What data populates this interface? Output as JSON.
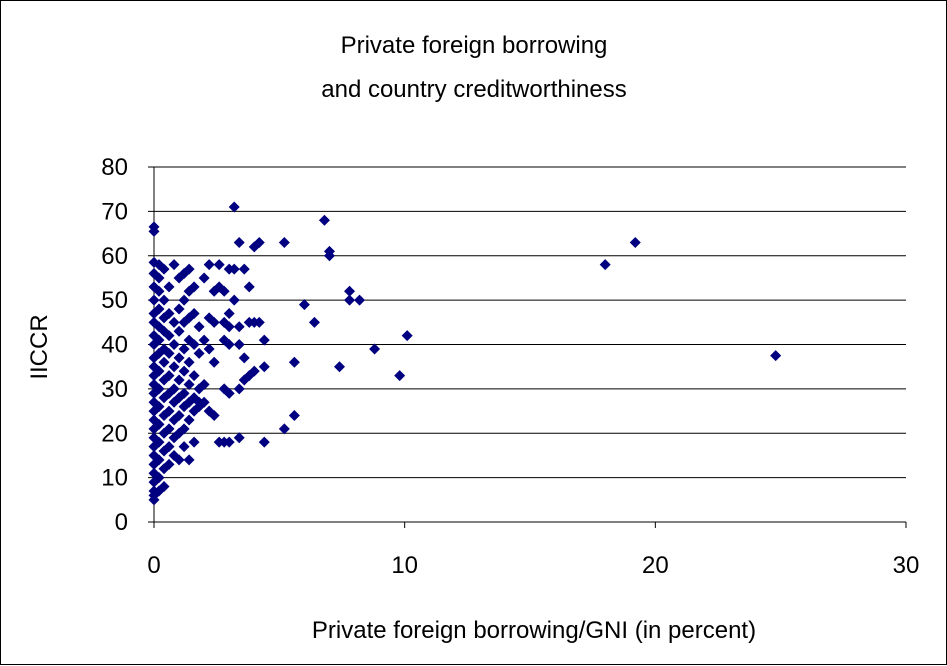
{
  "chart_data": {
    "type": "scatter",
    "title_lines": [
      "Private foreign borrowing",
      "and country creditworthiness"
    ],
    "xlabel": "Private foreign borrowing/GNI (in percent)",
    "ylabel": "IICCR",
    "xlim": [
      0,
      30
    ],
    "ylim": [
      0,
      80
    ],
    "x_ticks": [
      0,
      10,
      20,
      30
    ],
    "y_ticks": [
      0,
      10,
      20,
      30,
      40,
      50,
      60,
      70,
      80
    ],
    "grid": "horizontal",
    "marker": "diamond",
    "marker_color": "#000080",
    "series": [
      {
        "points": [
          [
            0,
            66.5
          ],
          [
            0,
            65.5
          ],
          [
            0,
            58.5
          ],
          [
            0,
            56
          ],
          [
            0,
            53
          ],
          [
            0,
            50
          ],
          [
            0,
            47
          ],
          [
            0,
            45
          ],
          [
            0,
            42
          ],
          [
            0,
            40
          ],
          [
            0,
            37
          ],
          [
            0,
            35
          ],
          [
            0,
            33
          ],
          [
            0,
            31
          ],
          [
            0,
            29
          ],
          [
            0,
            27
          ],
          [
            0,
            25
          ],
          [
            0,
            23
          ],
          [
            0,
            21
          ],
          [
            0,
            19
          ],
          [
            0,
            17
          ],
          [
            0,
            15
          ],
          [
            0,
            13
          ],
          [
            0,
            11
          ],
          [
            0,
            9
          ],
          [
            0,
            7
          ],
          [
            0,
            6
          ],
          [
            0,
            5
          ],
          [
            0.2,
            58
          ],
          [
            0.2,
            55
          ],
          [
            0.2,
            52
          ],
          [
            0.2,
            48
          ],
          [
            0.2,
            44
          ],
          [
            0.2,
            41
          ],
          [
            0.2,
            38
          ],
          [
            0.2,
            34
          ],
          [
            0.2,
            30
          ],
          [
            0.2,
            26
          ],
          [
            0.2,
            22
          ],
          [
            0.2,
            18
          ],
          [
            0.2,
            14
          ],
          [
            0.2,
            10
          ],
          [
            0.2,
            7
          ],
          [
            0.4,
            57
          ],
          [
            0.4,
            50
          ],
          [
            0.4,
            46
          ],
          [
            0.4,
            43
          ],
          [
            0.4,
            39
          ],
          [
            0.4,
            36
          ],
          [
            0.4,
            32
          ],
          [
            0.4,
            28
          ],
          [
            0.4,
            24
          ],
          [
            0.4,
            20
          ],
          [
            0.4,
            16
          ],
          [
            0.4,
            12
          ],
          [
            0.4,
            8
          ],
          [
            0.6,
            53
          ],
          [
            0.6,
            47
          ],
          [
            0.6,
            42
          ],
          [
            0.6,
            38
          ],
          [
            0.6,
            33
          ],
          [
            0.6,
            29
          ],
          [
            0.6,
            25
          ],
          [
            0.6,
            21
          ],
          [
            0.6,
            17
          ],
          [
            0.6,
            13
          ],
          [
            0.8,
            58
          ],
          [
            0.8,
            45
          ],
          [
            0.8,
            40
          ],
          [
            0.8,
            35
          ],
          [
            0.8,
            30
          ],
          [
            0.8,
            27
          ],
          [
            0.8,
            23
          ],
          [
            0.8,
            19
          ],
          [
            0.8,
            15
          ],
          [
            1.0,
            55
          ],
          [
            1.0,
            48
          ],
          [
            1.0,
            43
          ],
          [
            1.0,
            37
          ],
          [
            1.0,
            32
          ],
          [
            1.0,
            28
          ],
          [
            1.0,
            24
          ],
          [
            1.0,
            20
          ],
          [
            1.0,
            14
          ],
          [
            1.2,
            56
          ],
          [
            1.2,
            50
          ],
          [
            1.2,
            45
          ],
          [
            1.2,
            39
          ],
          [
            1.2,
            34
          ],
          [
            1.2,
            29
          ],
          [
            1.2,
            26
          ],
          [
            1.2,
            21
          ],
          [
            1.2,
            17
          ],
          [
            1.4,
            57
          ],
          [
            1.4,
            52
          ],
          [
            1.4,
            46
          ],
          [
            1.4,
            41
          ],
          [
            1.4,
            36
          ],
          [
            1.4,
            31
          ],
          [
            1.4,
            27
          ],
          [
            1.4,
            23
          ],
          [
            1.4,
            14
          ],
          [
            1.6,
            53
          ],
          [
            1.6,
            47
          ],
          [
            1.6,
            40
          ],
          [
            1.6,
            33
          ],
          [
            1.6,
            28
          ],
          [
            1.6,
            25
          ],
          [
            1.6,
            18
          ],
          [
            1.8,
            44
          ],
          [
            1.8,
            38
          ],
          [
            1.8,
            30
          ],
          [
            1.8,
            27
          ],
          [
            1.8,
            26
          ],
          [
            2.0,
            55
          ],
          [
            2.0,
            41
          ],
          [
            2.0,
            31
          ],
          [
            2.0,
            27
          ],
          [
            2.2,
            58
          ],
          [
            2.2,
            46
          ],
          [
            2.2,
            39
          ],
          [
            2.2,
            25
          ],
          [
            2.4,
            52
          ],
          [
            2.4,
            45
          ],
          [
            2.4,
            36
          ],
          [
            2.4,
            24
          ],
          [
            2.6,
            58
          ],
          [
            2.6,
            53
          ],
          [
            2.6,
            18
          ],
          [
            2.8,
            52
          ],
          [
            2.8,
            45
          ],
          [
            2.8,
            41
          ],
          [
            2.8,
            30
          ],
          [
            2.8,
            18
          ],
          [
            3.0,
            57
          ],
          [
            3.0,
            47
          ],
          [
            3.0,
            44
          ],
          [
            3.0,
            40
          ],
          [
            3.0,
            29
          ],
          [
            3.0,
            18
          ],
          [
            3.2,
            71
          ],
          [
            3.2,
            57
          ],
          [
            3.2,
            50
          ],
          [
            3.4,
            63
          ],
          [
            3.4,
            44
          ],
          [
            3.4,
            40
          ],
          [
            3.4,
            30
          ],
          [
            3.4,
            19
          ],
          [
            3.6,
            57
          ],
          [
            3.6,
            37
          ],
          [
            3.6,
            32
          ],
          [
            3.8,
            53
          ],
          [
            3.8,
            45
          ],
          [
            3.8,
            33
          ],
          [
            4.0,
            62
          ],
          [
            4.0,
            45
          ],
          [
            4.0,
            34
          ],
          [
            4.2,
            63
          ],
          [
            4.2,
            45
          ],
          [
            4.4,
            41
          ],
          [
            4.4,
            35
          ],
          [
            4.4,
            18
          ],
          [
            5.2,
            63
          ],
          [
            5.2,
            21
          ],
          [
            5.6,
            36
          ],
          [
            5.6,
            24
          ],
          [
            6.0,
            49
          ],
          [
            6.4,
            45
          ],
          [
            6.8,
            68
          ],
          [
            7.0,
            61
          ],
          [
            7.0,
            60
          ],
          [
            7.4,
            35
          ],
          [
            7.8,
            52
          ],
          [
            7.8,
            50
          ],
          [
            8.2,
            50
          ],
          [
            8.8,
            39
          ],
          [
            9.8,
            33
          ],
          [
            10.1,
            42
          ],
          [
            18.0,
            58
          ],
          [
            19.2,
            63
          ],
          [
            24.8,
            37.5
          ]
        ]
      }
    ]
  }
}
